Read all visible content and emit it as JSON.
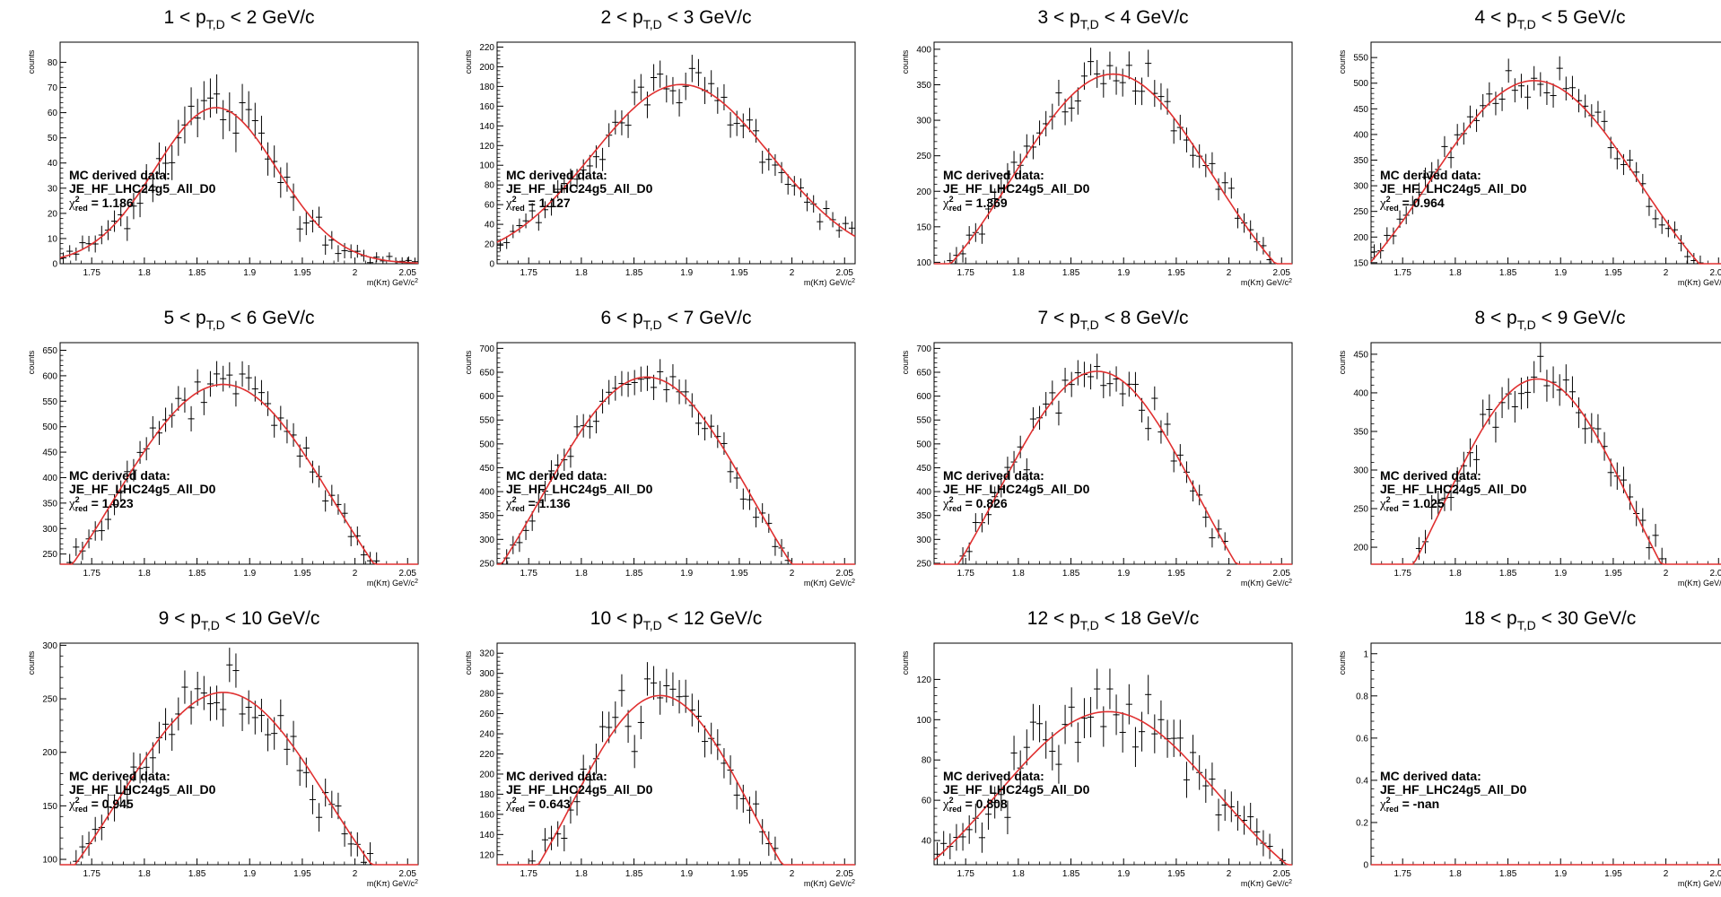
{
  "chart_data": [
    {
      "type": "scatter",
      "title": "1 < p",
      "title_sub": "T,D",
      "title_end": "< 2 GeV/c",
      "xlabel": "m(Kπ) GeV/c",
      "xlabel_sup": "2",
      "ylabel": "counts",
      "xlim": [
        1.72,
        2.06
      ],
      "ylim": [
        0,
        88
      ],
      "yticks": [
        0,
        10,
        20,
        30,
        40,
        50,
        60,
        70,
        80
      ],
      "fit": {
        "peak": 62,
        "mu": 1.868,
        "sigma": 0.058
      },
      "annotation": {
        "line1": "MC derived data:",
        "line2": "JE_HF_LHC24g5_All_D0",
        "chi_label": "χ",
        "chi_sup": "2",
        "chi_sub": "red",
        "chi_value": "= 1.186"
      }
    },
    {
      "type": "scatter",
      "title": "2 < p",
      "title_sub": "T,D",
      "title_end": "< 3 GeV/c",
      "xlabel": "m(Kπ) GeV/c",
      "xlabel_sup": "2",
      "ylabel": "counts",
      "xlim": [
        1.72,
        2.06
      ],
      "ylim": [
        0,
        225
      ],
      "yticks": [
        0,
        20,
        40,
        60,
        80,
        100,
        120,
        140,
        160,
        180,
        200,
        220
      ],
      "fit": {
        "peak": 182,
        "mu": 1.895,
        "sigma": 0.085
      },
      "annotation": {
        "line1": "MC derived data:",
        "line2": "JE_HF_LHC24g5_All_D0",
        "chi_label": "χ",
        "chi_sup": "2",
        "chi_sub": "red",
        "chi_value": "= 1.127"
      }
    },
    {
      "type": "scatter",
      "title": "3 < p",
      "title_sub": "T,D",
      "title_end": "< 4 GeV/c",
      "xlabel": "m(Kπ) GeV/c",
      "xlabel_sup": "2",
      "ylabel": "counts",
      "xlim": [
        1.72,
        2.06
      ],
      "ylim": [
        98,
        410
      ],
      "yticks": [
        100,
        150,
        200,
        250,
        300,
        350,
        400
      ],
      "fit": {
        "peak": 365,
        "mu": 1.89,
        "sigma": 0.095
      },
      "annotation": {
        "line1": "MC derived data:",
        "line2": "JE_HF_LHC24g5_All_D0",
        "chi_label": "χ",
        "chi_sup": "2",
        "chi_sub": "red",
        "chi_value": "= 1.369"
      }
    },
    {
      "type": "scatter",
      "title": "4 < p",
      "title_sub": "T,D",
      "title_end": "< 5 GeV/c",
      "xlabel": "m(Kπ) GeV/c",
      "xlabel_sup": "2",
      "ylabel": "counts",
      "xlim": [
        1.72,
        2.06
      ],
      "ylim": [
        148,
        580
      ],
      "yticks": [
        150,
        200,
        250,
        300,
        350,
        400,
        450,
        500,
        550
      ],
      "fit": {
        "peak": 505,
        "mu": 1.875,
        "sigma": 0.1
      },
      "annotation": {
        "line1": "MC derived data:",
        "line2": "JE_HF_LHC24g5_All_D0",
        "chi_label": "χ",
        "chi_sup": "2",
        "chi_sub": "red",
        "chi_value": "= 0.964"
      }
    },
    {
      "type": "scatter",
      "title": "5 < p",
      "title_sub": "T,D",
      "title_end": "< 6 GeV/c",
      "xlabel": "m(Kπ) GeV/c",
      "xlabel_sup": "2",
      "ylabel": "counts",
      "xlim": [
        1.72,
        2.06
      ],
      "ylim": [
        230,
        665
      ],
      "yticks": [
        250,
        300,
        350,
        400,
        450,
        500,
        550,
        600,
        650
      ],
      "fit": {
        "peak": 583,
        "mu": 1.875,
        "sigma": 0.105
      },
      "annotation": {
        "line1": "MC derived data:",
        "line2": "JE_HF_LHC24g5_All_D0",
        "chi_label": "χ",
        "chi_sup": "2",
        "chi_sub": "red",
        "chi_value": "= 1.023"
      }
    },
    {
      "type": "scatter",
      "title": "6 < p",
      "title_sub": "T,D",
      "title_end": "< 7 GeV/c",
      "xlabel": "m(Kπ) GeV/c",
      "xlabel_sup": "2",
      "ylabel": "counts",
      "xlim": [
        1.72,
        2.06
      ],
      "ylim": [
        248,
        712
      ],
      "yticks": [
        250,
        300,
        350,
        400,
        450,
        500,
        550,
        600,
        650,
        700
      ],
      "fit": {
        "peak": 640,
        "mu": 1.862,
        "sigma": 0.1
      },
      "annotation": {
        "line1": "MC derived data:",
        "line2": "JE_HF_LHC24g5_All_D0",
        "chi_label": "χ",
        "chi_sup": "2",
        "chi_sub": "red",
        "chi_value": "= 1.136"
      }
    },
    {
      "type": "scatter",
      "title": "7 < p",
      "title_sub": "T,D",
      "title_end": "< 8 GeV/c",
      "xlabel": "m(Kπ) GeV/c",
      "xlabel_sup": "2",
      "ylabel": "counts",
      "xlim": [
        1.72,
        2.06
      ],
      "ylim": [
        248,
        712
      ],
      "yticks": [
        250,
        300,
        350,
        400,
        450,
        500,
        550,
        600,
        650,
        700
      ],
      "fit": {
        "peak": 652,
        "mu": 1.875,
        "sigma": 0.095
      },
      "annotation": {
        "line1": "MC derived data:",
        "line2": "JE_HF_LHC24g5_All_D0",
        "chi_label": "χ",
        "chi_sup": "2",
        "chi_sub": "red",
        "chi_value": "= 0.826"
      }
    },
    {
      "type": "scatter",
      "title": "8 < p",
      "title_sub": "T,D",
      "title_end": "< 9 GeV/c",
      "xlabel": "m(Kπ) GeV/c",
      "xlabel_sup": "2",
      "ylabel": "counts",
      "xlim": [
        1.72,
        2.06
      ],
      "ylim": [
        178,
        465
      ],
      "yticks": [
        200,
        250,
        300,
        350,
        400,
        450
      ],
      "fit": {
        "peak": 418,
        "mu": 1.878,
        "sigma": 0.09
      },
      "annotation": {
        "line1": "MC derived data:",
        "line2": "JE_HF_LHC24g5_All_D0",
        "chi_label": "χ",
        "chi_sup": "2",
        "chi_sub": "red",
        "chi_value": "= 1.025"
      }
    },
    {
      "type": "scatter",
      "title": "9 < p",
      "title_sub": "T,D",
      "title_end": "< 10 GeV/c",
      "xlabel": "m(Kπ) GeV/c",
      "xlabel_sup": "2",
      "ylabel": "counts",
      "xlim": [
        1.72,
        2.06
      ],
      "ylim": [
        95,
        302
      ],
      "yticks": [
        100,
        150,
        200,
        250,
        300
      ],
      "fit": {
        "peak": 256,
        "mu": 1.875,
        "sigma": 0.1
      },
      "annotation": {
        "line1": "MC derived data:",
        "line2": "JE_HF_LHC24g5_All_D0",
        "chi_label": "χ",
        "chi_sup": "2",
        "chi_sub": "red",
        "chi_value": "= 0.945"
      }
    },
    {
      "type": "scatter",
      "title": "10 < p",
      "title_sub": "T,D",
      "title_end": "< 12 GeV/c",
      "xlabel": "m(Kπ) GeV/c",
      "xlabel_sup": "2",
      "ylabel": "counts",
      "xlim": [
        1.72,
        2.06
      ],
      "ylim": [
        110,
        330
      ],
      "yticks": [
        120,
        140,
        160,
        180,
        200,
        220,
        240,
        260,
        280,
        300,
        320
      ],
      "fit": {
        "peak": 278,
        "mu": 1.875,
        "sigma": 0.085
      },
      "annotation": {
        "line1": "MC derived data:",
        "line2": "JE_HF_LHC24g5_All_D0",
        "chi_label": "χ",
        "chi_sup": "2",
        "chi_sub": "red",
        "chi_value": "= 0.643"
      }
    },
    {
      "type": "scatter",
      "title": "12 < p",
      "title_sub": "T,D",
      "title_end": "< 18 GeV/c",
      "xlabel": "m(Kπ) GeV/c",
      "xlabel_sup": "2",
      "ylabel": "counts",
      "xlim": [
        1.72,
        2.06
      ],
      "ylim": [
        28,
        138
      ],
      "yticks": [
        40,
        60,
        80,
        100,
        120
      ],
      "fit": {
        "peak": 104,
        "mu": 1.885,
        "sigma": 0.105
      },
      "annotation": {
        "line1": "MC derived data:",
        "line2": "JE_HF_LHC24g5_All_D0",
        "chi_label": "χ",
        "chi_sup": "2",
        "chi_sub": "red",
        "chi_value": "= 0.808"
      }
    },
    {
      "type": "scatter",
      "title": "18 < p",
      "title_sub": "T,D",
      "title_end": "< 30 GeV/c",
      "xlabel": "m(Kπ) GeV/c",
      "xlabel_sup": "2",
      "ylabel": "counts",
      "xlim": [
        1.72,
        2.06
      ],
      "ylim": [
        0,
        1.05
      ],
      "yticks": [
        0,
        0.2,
        0.4,
        0.6,
        0.8,
        1
      ],
      "fit": {
        "peak": 0,
        "mu": 1.88,
        "sigma": 0.1
      },
      "annotation": {
        "line1": "MC derived data:",
        "line2": "JE_HF_LHC24g5_All_D0",
        "chi_label": "χ",
        "chi_sup": "2",
        "chi_sub": "red",
        "chi_value": "= -nan"
      }
    }
  ],
  "x_ticks": [
    1.75,
    1.8,
    1.85,
    1.9,
    1.95,
    2,
    2.05
  ],
  "x_tick_labels": [
    "1.75",
    "1.8",
    "1.85",
    "1.9",
    "1.95",
    "2",
    "2.05"
  ],
  "colors": {
    "fit": "#e03030",
    "points": "#000000",
    "axes": "#000000"
  }
}
